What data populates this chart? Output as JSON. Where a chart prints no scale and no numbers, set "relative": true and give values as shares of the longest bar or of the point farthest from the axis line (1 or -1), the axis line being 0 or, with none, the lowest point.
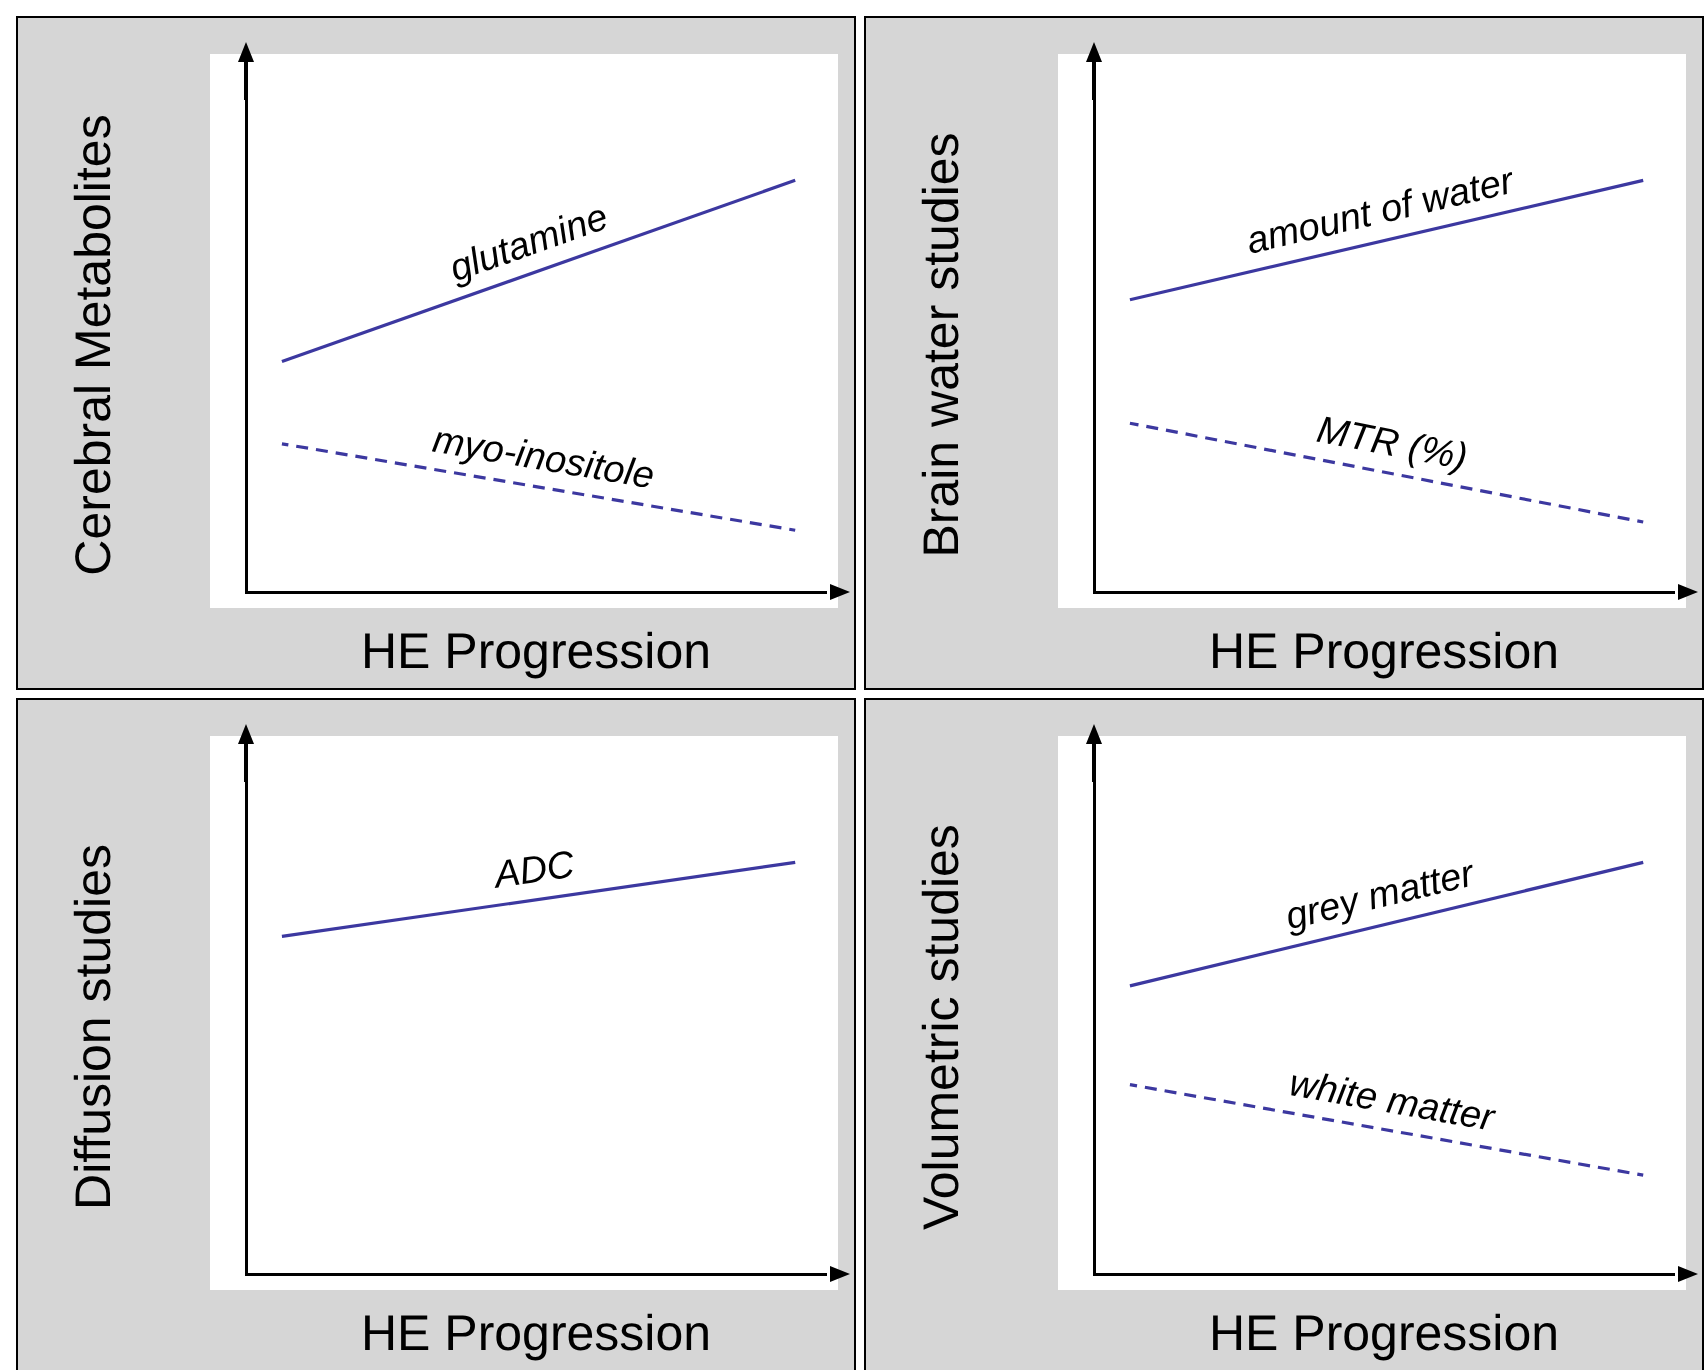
{
  "chart_data": [
    {
      "type": "line",
      "ylabel": "Cerebral Metabolites",
      "xlabel": "HE Progression",
      "relative": true,
      "categories": [
        null,
        null
      ],
      "legend": false,
      "grid": false,
      "marker": "none",
      "series": [
        {
          "name": "glutamine",
          "color": "#3c38a0",
          "values": [
            0.56,
            1.0
          ],
          "line_style": "solid"
        },
        {
          "name": "myo-inositole",
          "color": "#3c38a0",
          "values": [
            0.36,
            0.15
          ],
          "line_style": "dashed"
        }
      ]
    },
    {
      "type": "line",
      "ylabel": "Brain water studies",
      "xlabel": "HE Progression",
      "relative": true,
      "categories": [
        null,
        null
      ],
      "legend": false,
      "grid": false,
      "marker": "none",
      "series": [
        {
          "name": "amount of water",
          "color": "#3c38a0",
          "values": [
            0.71,
            1.0
          ],
          "line_style": "solid"
        },
        {
          "name": "MTR (%)",
          "color": "#3c38a0",
          "values": [
            0.41,
            0.17
          ],
          "line_style": "dashed"
        }
      ]
    },
    {
      "type": "line",
      "ylabel": "Diffusion studies",
      "xlabel": "HE Progression",
      "relative": true,
      "categories": [
        null,
        null
      ],
      "legend": false,
      "grid": false,
      "marker": "none",
      "series": [
        {
          "name": "ADC",
          "color": "#3c38a0",
          "values": [
            0.82,
            1.0
          ],
          "line_style": "solid"
        }
      ]
    },
    {
      "type": "line",
      "ylabel": "Volumetric studies",
      "xlabel": "HE Progression",
      "relative": true,
      "categories": [
        null,
        null
      ],
      "legend": false,
      "grid": false,
      "marker": "none",
      "series": [
        {
          "name": "grey matter",
          "color": "#3c38a0",
          "values": [
            0.7,
            1.0
          ],
          "line_style": "solid"
        },
        {
          "name": "white matter",
          "color": "#3c38a0",
          "values": [
            0.46,
            0.24
          ],
          "line_style": "dashed"
        }
      ]
    }
  ]
}
